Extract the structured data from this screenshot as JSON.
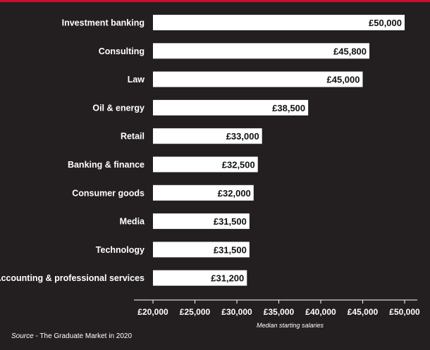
{
  "chart_data": {
    "type": "bar",
    "orientation": "horizontal",
    "categories": [
      "Investment banking",
      "Consulting",
      "Law",
      "Oil & energy",
      "Retail",
      "Banking & finance",
      "Consumer goods",
      "Media",
      "Technology",
      "Accounting & professional services"
    ],
    "values": [
      50000,
      45800,
      45000,
      38500,
      33000,
      32500,
      32000,
      31500,
      31500,
      31200
    ],
    "data_labels": [
      "£50,000",
      "£45,800",
      "£45,000",
      "£38,500",
      "£33,000",
      "£32,500",
      "£32,000",
      "£31,500",
      "£31,500",
      "£31,200"
    ],
    "xlim": [
      20000,
      50000
    ],
    "x_ticks": [
      20000,
      25000,
      30000,
      35000,
      40000,
      45000,
      50000
    ],
    "x_tick_labels": [
      "£20,000",
      "£25,000",
      "£30,000",
      "£35,000",
      "£40,000",
      "£45,000",
      "£50,000"
    ],
    "xlabel": "Median starting salaries",
    "bar_color": "#ffffff",
    "background_color": "#231f20",
    "accent_color": "#c8102e",
    "grid": false
  },
  "source": {
    "prefix": "Source",
    "text": " - The Graduate Market in 2020"
  }
}
